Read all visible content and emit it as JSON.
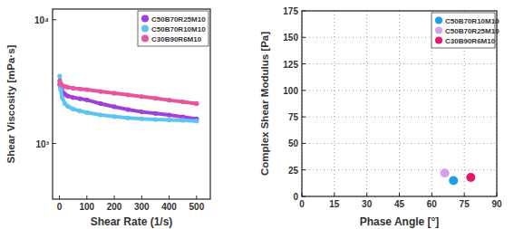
{
  "chart_data": [
    {
      "type": "line",
      "x_label": "Shear Rate (1/s)",
      "y_label": "Shear Viscosity [mPa·s]",
      "log": "y",
      "grid": false,
      "legend": "upper right",
      "marker": "circle",
      "x": [
        1,
        5,
        10,
        20,
        30,
        50,
        75,
        100,
        150,
        200,
        250,
        300,
        350,
        400,
        450,
        500
      ],
      "xlim": [
        -25,
        550
      ],
      "xticks": [
        0,
        100,
        200,
        300,
        400,
        500
      ],
      "ylim": [
        355,
        12200
      ],
      "yticks": [
        {
          "value": 1000,
          "label": "10³"
        },
        {
          "value": 10000,
          "label": "10⁴"
        }
      ],
      "series": [
        {
          "name": "C50B70R25M10",
          "color": "#a040d8",
          "values": [
            3000,
            2800,
            2650,
            2500,
            2420,
            2350,
            2300,
            2250,
            2100,
            1980,
            1880,
            1800,
            1750,
            1700,
            1640,
            1580
          ]
        },
        {
          "name": "C50B70R10M10",
          "color": "#5ec4f2",
          "values": [
            3500,
            2700,
            2350,
            2100,
            2000,
            1900,
            1830,
            1780,
            1700,
            1650,
            1610,
            1580,
            1560,
            1550,
            1540,
            1520
          ]
        },
        {
          "name": "C30B90R6M10",
          "color": "#e8559e",
          "values": [
            3200,
            3050,
            2950,
            2880,
            2850,
            2800,
            2760,
            2720,
            2630,
            2550,
            2470,
            2390,
            2320,
            2240,
            2170,
            2100
          ]
        }
      ]
    },
    {
      "type": "scatter",
      "x_label": "Phase Angle [°]",
      "y_label": "Complex Shear Modulus [Pa]",
      "grid": true,
      "legend": "upper right",
      "marker": "circle",
      "xlim": [
        0,
        90
      ],
      "xticks": [
        0,
        15,
        30,
        45,
        60,
        75,
        90
      ],
      "ylim": [
        0,
        175
      ],
      "yticks": [
        0,
        25,
        50,
        75,
        100,
        125,
        150,
        175
      ],
      "series": [
        {
          "name": "C50B70R10M10",
          "color": "#1e9ee6",
          "x": [
            70
          ],
          "values": [
            15
          ]
        },
        {
          "name": "C50B70R25M10",
          "color": "#d8a0ea",
          "x": [
            66
          ],
          "values": [
            22
          ]
        },
        {
          "name": "C30B90R6M10",
          "color": "#e5176a",
          "x": [
            78
          ],
          "values": [
            18
          ]
        }
      ]
    }
  ]
}
